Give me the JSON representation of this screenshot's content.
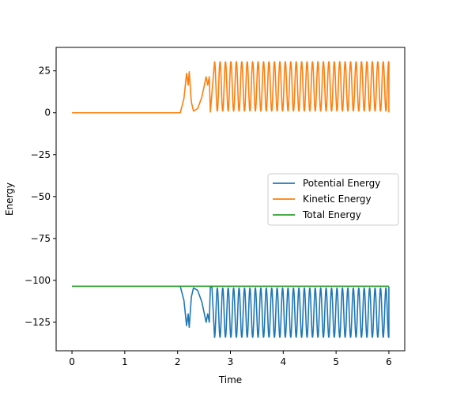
{
  "chart_data": {
    "type": "line",
    "title": "",
    "xlabel": "Time",
    "ylabel": "Energy",
    "xlim": [
      -0.3,
      6.3
    ],
    "ylim": [
      -142,
      39
    ],
    "xticks": [
      0,
      1,
      2,
      3,
      4,
      5,
      6
    ],
    "yticks": [
      25,
      0,
      -25,
      -50,
      -75,
      -100,
      -125
    ],
    "ytick_labels": [
      "25",
      "0",
      "−25",
      "−50",
      "−75",
      "−100",
      "−125"
    ],
    "grid": false,
    "legend_position": "center-right",
    "series": [
      {
        "name": "Potential Energy",
        "color": "#1f77b4",
        "points": [
          [
            0,
            -103.5
          ],
          [
            2.05,
            -103.5
          ],
          [
            2.12,
            -112
          ],
          [
            2.17,
            -127
          ],
          [
            2.2,
            -120
          ],
          [
            2.22,
            -128
          ],
          [
            2.26,
            -110
          ],
          [
            2.3,
            -104.5
          ],
          [
            2.38,
            -106
          ],
          [
            2.46,
            -113
          ],
          [
            2.52,
            -122
          ],
          [
            2.54,
            -125
          ],
          [
            2.57,
            -120
          ],
          [
            2.6,
            -125
          ],
          [
            2.62,
            -104
          ],
          [
            2.65,
            -104
          ],
          [
            2.7,
            -132
          ],
          [
            2.75,
            -104
          ],
          [
            2.8,
            -134
          ],
          [
            2.86,
            -104
          ],
          [
            6.0,
            -104
          ],
          [
            6.0,
            -123
          ]
        ],
        "oscillation": {
          "start": 2.7,
          "end": 6.0,
          "low": -134,
          "high": -104.5,
          "period": 0.103
        }
      },
      {
        "name": "Kinetic Energy",
        "color": "#ff7f0e",
        "points": [
          [
            0,
            0
          ],
          [
            2.05,
            0
          ],
          [
            2.12,
            8.5
          ],
          [
            2.17,
            23.5
          ],
          [
            2.2,
            16.5
          ],
          [
            2.22,
            24.5
          ],
          [
            2.26,
            6.5
          ],
          [
            2.3,
            1
          ],
          [
            2.38,
            2.5
          ],
          [
            2.46,
            9.5
          ],
          [
            2.52,
            18.5
          ],
          [
            2.54,
            21.5
          ],
          [
            2.57,
            16.5
          ],
          [
            2.6,
            21.5
          ],
          [
            2.62,
            0.5
          ],
          [
            6.0,
            0.5
          ],
          [
            6.0,
            19.5
          ]
        ],
        "oscillation": {
          "start": 2.7,
          "end": 6.0,
          "low": 1,
          "high": 30.5,
          "period": 0.103
        }
      },
      {
        "name": "Total Energy",
        "color": "#2ca02c",
        "points": [
          [
            0,
            -103.5
          ],
          [
            6.0,
            -103.5
          ]
        ]
      }
    ]
  }
}
